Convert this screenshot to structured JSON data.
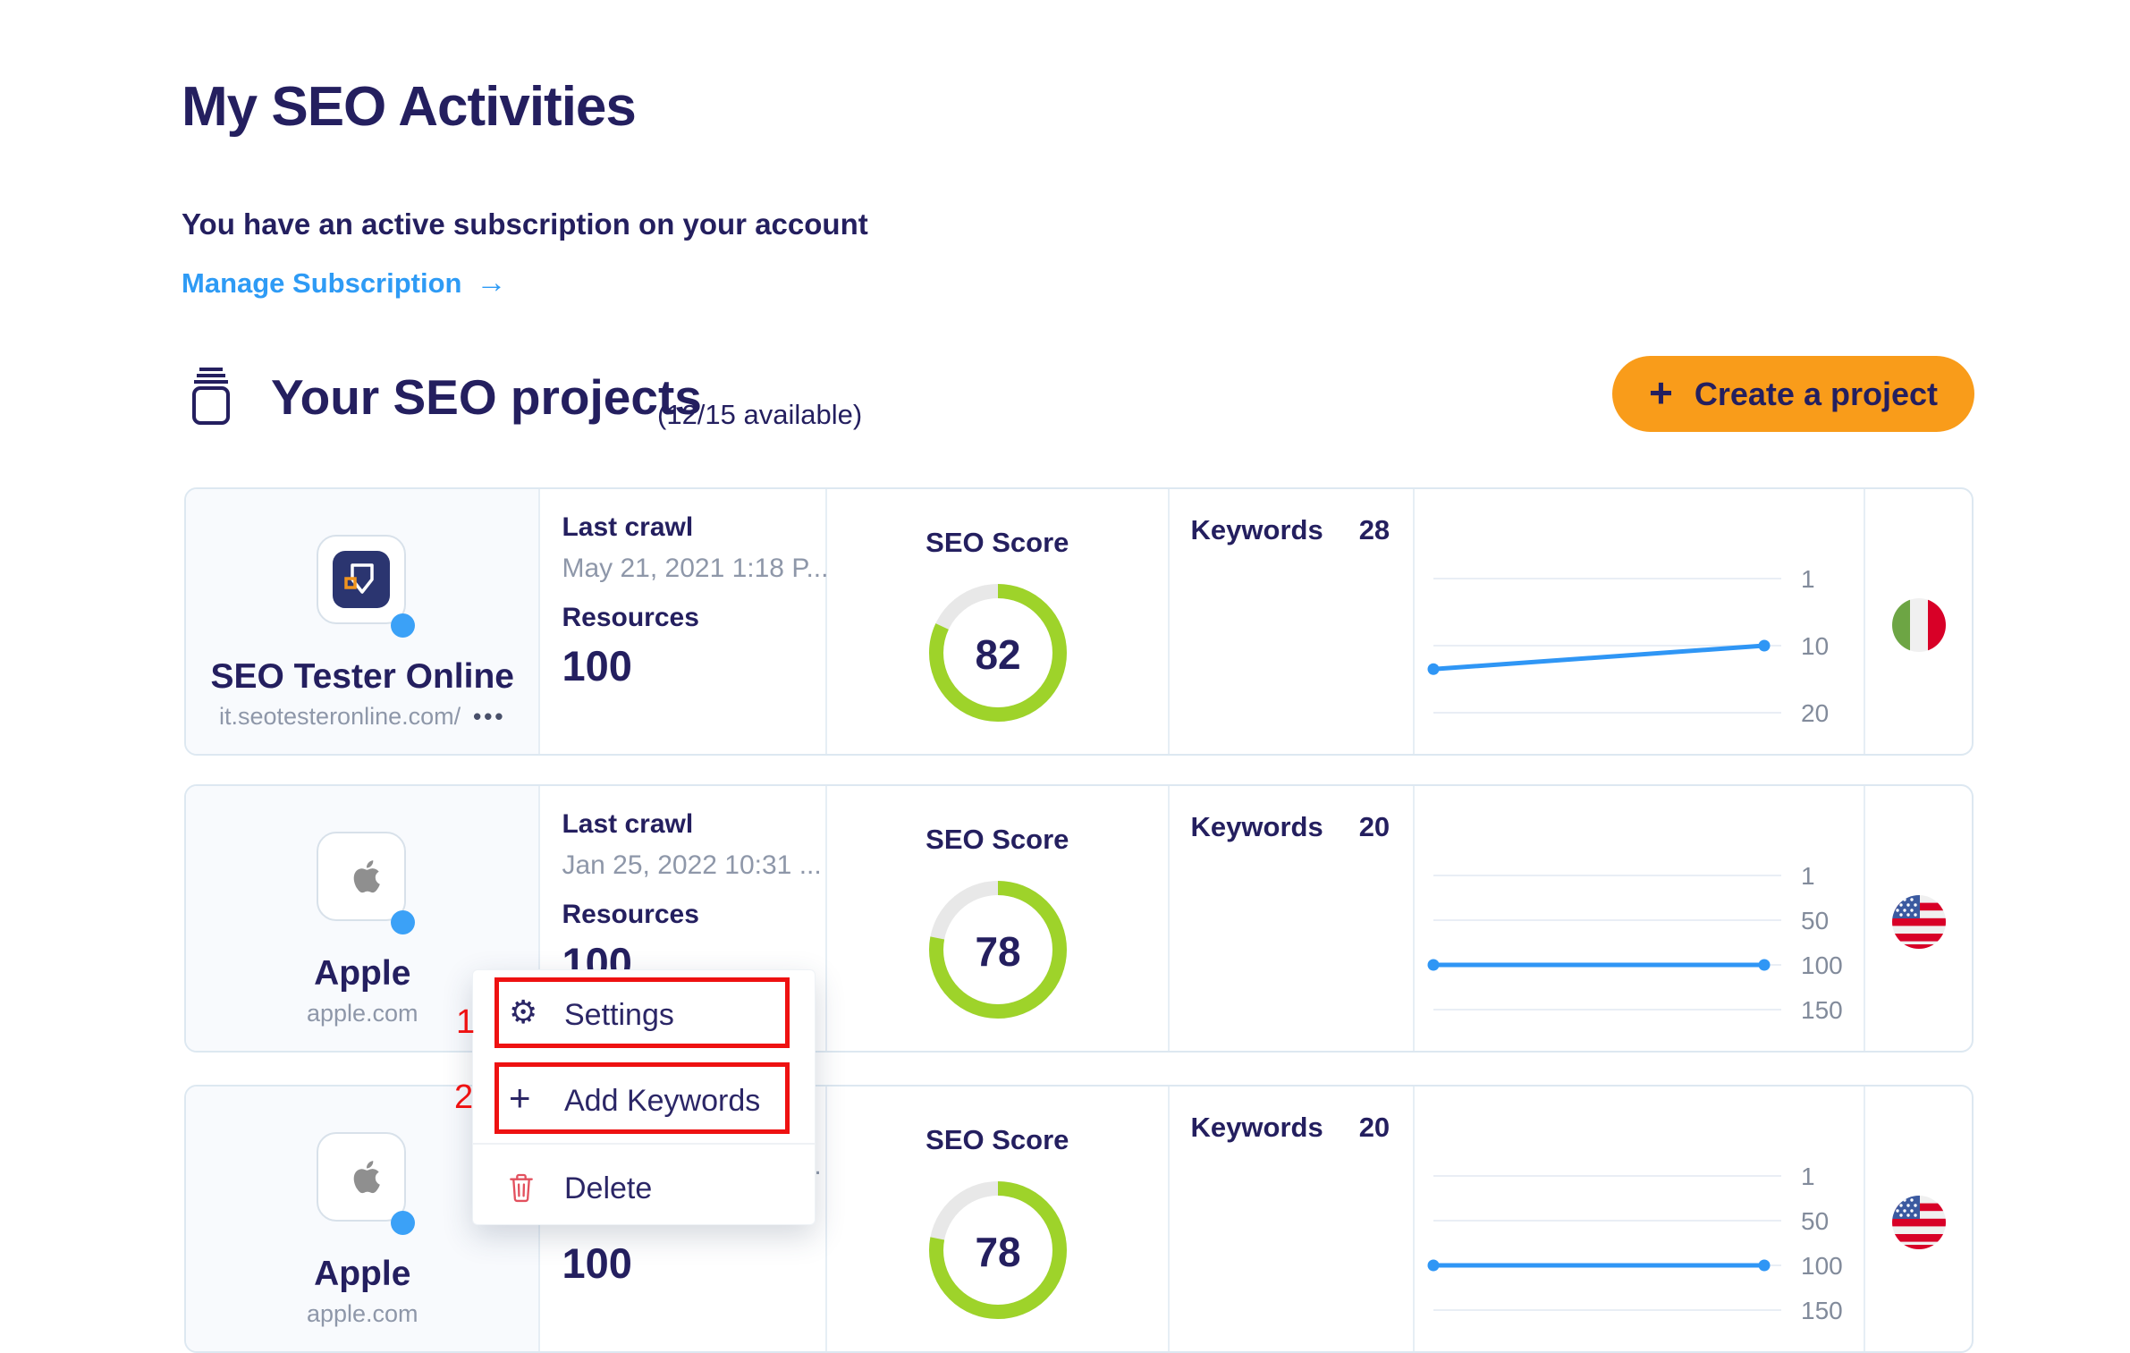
{
  "header": {
    "title": "My SEO Activities",
    "subscription_text": "You have an active subscription on your account",
    "manage_subscription": "Manage Subscription",
    "arrow": "→"
  },
  "section": {
    "title": "Your SEO projects",
    "availability": "(12/15 available)",
    "plus": "+",
    "create_button": "Create a project"
  },
  "labels": {
    "last_crawl": "Last crawl",
    "resources": "Resources",
    "seo_score": "SEO Score",
    "keywords": "Keywords",
    "menu_dots": "•••"
  },
  "projects": [
    {
      "name": "SEO Tester Online",
      "url": "it.seotesteronline.com/",
      "last_crawl": "May 21, 2021 1:18 P...",
      "resources": "100",
      "seo_score": 82,
      "keywords": 28,
      "flag": "Italy",
      "chart": {
        "type": "line",
        "ylabels": [
          1,
          10,
          20
        ],
        "points": [
          13.5,
          10
        ]
      }
    },
    {
      "name": "Apple",
      "url": "apple.com",
      "last_crawl": "Jan 25, 2022 10:31 ...",
      "resources": "100",
      "seo_score": 78,
      "keywords": 20,
      "flag": "USA",
      "chart": {
        "type": "line",
        "ylabels": [
          1,
          50,
          100,
          150
        ],
        "points": [
          100,
          100
        ]
      }
    },
    {
      "name": "Apple",
      "url": "apple.com",
      "last_crawl": "Jan 25, 2022 10:31 ...",
      "resources": "100",
      "seo_score": 78,
      "keywords": 20,
      "flag": "USA",
      "chart": {
        "type": "line",
        "ylabels": [
          1,
          50,
          100,
          150
        ],
        "points": [
          100,
          100
        ]
      }
    }
  ],
  "context_menu": {
    "settings": "Settings",
    "add_keywords": "Add Keywords",
    "delete": "Delete",
    "gear": "⚙",
    "plus": "+"
  },
  "annotations": {
    "step1": "1",
    "step2": "2"
  },
  "colors": {
    "navy": "#241f5f",
    "link_blue": "#2e9bf5",
    "line_blue": "#2f96f5",
    "ring_green": "#9ed32a",
    "ring_gray": "#e8e8e8",
    "orange": "#f99c1a",
    "annotation_red": "#ee1111",
    "delete_red": "#e2505e",
    "gray_text": "#8e97a9"
  }
}
